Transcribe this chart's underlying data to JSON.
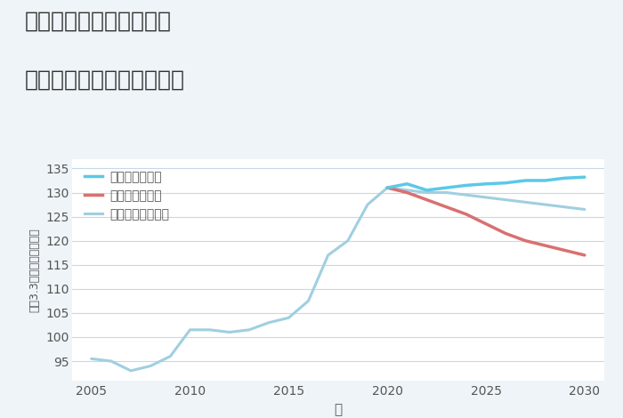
{
  "title_line1": "兵庫県姫路市神子岡前の",
  "title_line2": "中古マンションの価格推移",
  "xlabel": "年",
  "ylabel": "坪（3.3㎡）単価（万円）",
  "xlim": [
    2004,
    2031
  ],
  "ylim": [
    91,
    137
  ],
  "yticks": [
    95,
    100,
    105,
    110,
    115,
    120,
    125,
    130,
    135
  ],
  "xticks": [
    2005,
    2010,
    2015,
    2020,
    2025,
    2030
  ],
  "background_color": "#eef4f8",
  "plot_bg_color": "#ffffff",
  "grid_color": "#c5d9ea",
  "good_color": "#5bc8e8",
  "bad_color": "#d97070",
  "normal_color": "#a0cfe0",
  "good_label": "グッドシナリオ",
  "bad_label": "バッドシナリオ",
  "normal_label": "ノーマルシナリオ",
  "years_historical": [
    2005,
    2006,
    2007,
    2008,
    2009,
    2010,
    2011,
    2012,
    2013,
    2014,
    2015,
    2016,
    2017,
    2018,
    2019,
    2020
  ],
  "values_historical": [
    95.5,
    95.0,
    93.0,
    94.0,
    96.0,
    101.5,
    101.5,
    101.0,
    101.5,
    103.0,
    104.0,
    107.5,
    117.0,
    120.0,
    127.5,
    131.0
  ],
  "years_good": [
    2020,
    2021,
    2022,
    2023,
    2024,
    2025,
    2026,
    2027,
    2028,
    2029,
    2030
  ],
  "values_good": [
    131.0,
    131.8,
    130.5,
    131.0,
    131.5,
    131.8,
    132.0,
    132.5,
    132.5,
    133.0,
    133.2
  ],
  "years_bad": [
    2020,
    2021,
    2022,
    2023,
    2024,
    2025,
    2026,
    2027,
    2028,
    2029,
    2030
  ],
  "values_bad": [
    131.0,
    130.0,
    128.5,
    127.0,
    125.5,
    123.5,
    121.5,
    120.0,
    119.0,
    118.0,
    117.0
  ],
  "years_normal": [
    2020,
    2021,
    2022,
    2023,
    2024,
    2025,
    2026,
    2027,
    2028,
    2029,
    2030
  ],
  "values_normal": [
    131.0,
    130.5,
    130.0,
    130.0,
    129.5,
    129.0,
    128.5,
    128.0,
    127.5,
    127.0,
    126.5
  ]
}
